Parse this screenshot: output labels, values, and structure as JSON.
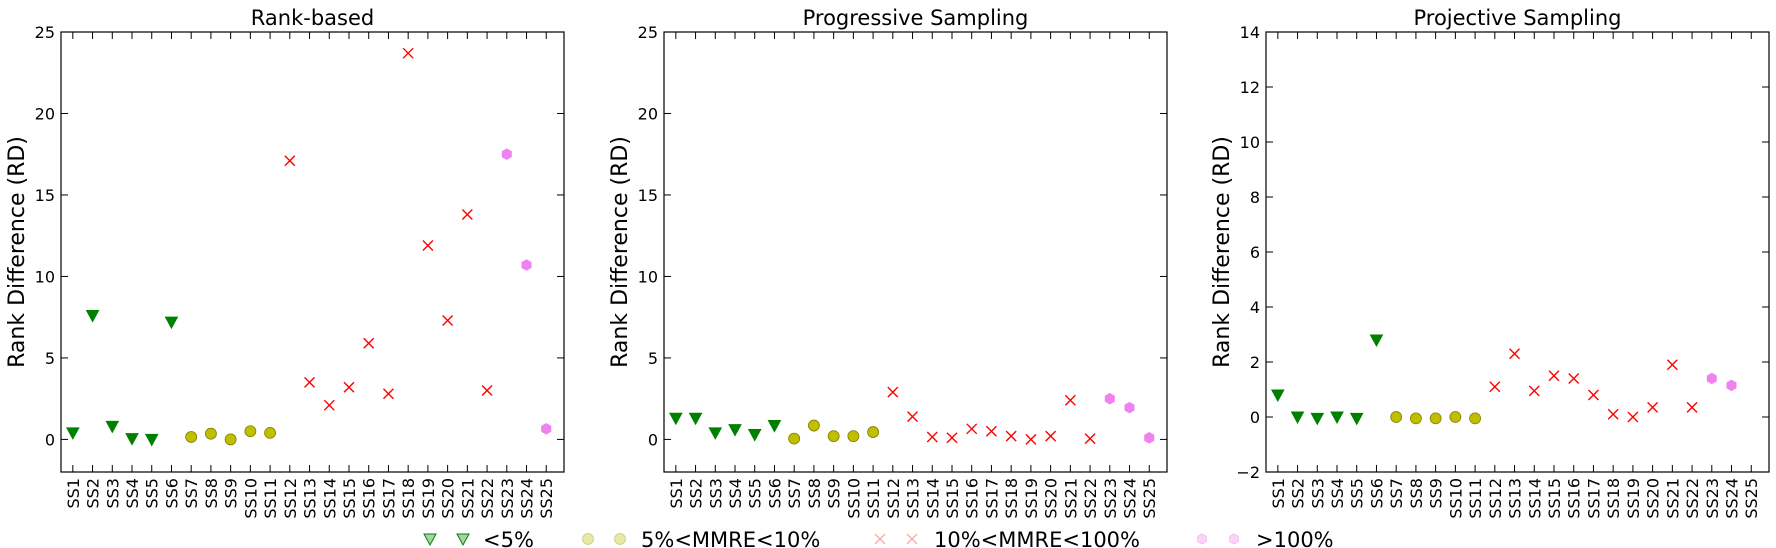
{
  "figure": {
    "legend": [
      {
        "label": "<5%",
        "marker": "triangle",
        "color": "#008000"
      },
      {
        "label": "5%<MMRE<10%",
        "marker": "circle",
        "color": "#bfbf00"
      },
      {
        "label": "10%<MMRE<100%",
        "marker": "x",
        "color": "#ff0000"
      },
      {
        "label": ">100%",
        "marker": "hexagon",
        "color": "#ee82ee"
      }
    ]
  },
  "chart_data": [
    {
      "type": "scatter",
      "title": "Rank-based",
      "ylabel": "Rank Difference (RD)",
      "categories": [
        "SS1",
        "SS2",
        "SS3",
        "SS4",
        "SS5",
        "SS6",
        "SS7",
        "SS8",
        "SS9",
        "SS10",
        "SS11",
        "SS12",
        "SS13",
        "SS14",
        "SS15",
        "SS16",
        "SS17",
        "SS18",
        "SS19",
        "SS20",
        "SS21",
        "SS22",
        "SS23",
        "SS24",
        "SS25"
      ],
      "ylim": [
        -2,
        25
      ],
      "yticks": [
        0,
        5,
        10,
        15,
        20,
        25
      ],
      "points": [
        {
          "x": "SS1",
          "y": 0.4,
          "group": "<5%"
        },
        {
          "x": "SS2",
          "y": 7.6,
          "group": "<5%"
        },
        {
          "x": "SS3",
          "y": 0.8,
          "group": "<5%"
        },
        {
          "x": "SS4",
          "y": 0.05,
          "group": "<5%"
        },
        {
          "x": "SS5",
          "y": 0.0,
          "group": "<5%"
        },
        {
          "x": "SS6",
          "y": 7.2,
          "group": "<5%"
        },
        {
          "x": "SS7",
          "y": 0.15,
          "group": "5%<MMRE<10%"
        },
        {
          "x": "SS8",
          "y": 0.35,
          "group": "5%<MMRE<10%"
        },
        {
          "x": "SS9",
          "y": 0.0,
          "group": "5%<MMRE<10%"
        },
        {
          "x": "SS10",
          "y": 0.5,
          "group": "5%<MMRE<10%"
        },
        {
          "x": "SS11",
          "y": 0.4,
          "group": "5%<MMRE<10%"
        },
        {
          "x": "SS12",
          "y": 17.1,
          "group": "10%<MMRE<100%"
        },
        {
          "x": "SS13",
          "y": 3.5,
          "group": "10%<MMRE<100%"
        },
        {
          "x": "SS14",
          "y": 2.1,
          "group": "10%<MMRE<100%"
        },
        {
          "x": "SS15",
          "y": 3.2,
          "group": "10%<MMRE<100%"
        },
        {
          "x": "SS16",
          "y": 5.9,
          "group": "10%<MMRE<100%"
        },
        {
          "x": "SS17",
          "y": 2.8,
          "group": "10%<MMRE<100%"
        },
        {
          "x": "SS18",
          "y": 23.7,
          "group": "10%<MMRE<100%"
        },
        {
          "x": "SS19",
          "y": 11.9,
          "group": "10%<MMRE<100%"
        },
        {
          "x": "SS20",
          "y": 7.3,
          "group": "10%<MMRE<100%"
        },
        {
          "x": "SS21",
          "y": 13.8,
          "group": "10%<MMRE<100%"
        },
        {
          "x": "SS22",
          "y": 3.0,
          "group": "10%<MMRE<100%"
        },
        {
          "x": "SS23",
          "y": 17.5,
          "group": ">100%"
        },
        {
          "x": "SS24",
          "y": 10.7,
          "group": ">100%"
        },
        {
          "x": "SS25",
          "y": 0.65,
          "group": ">100%"
        }
      ]
    },
    {
      "type": "scatter",
      "title": "Progressive Sampling",
      "ylabel": "Rank Difference (RD)",
      "categories": [
        "SS1",
        "SS2",
        "SS3",
        "SS4",
        "SS5",
        "SS6",
        "SS7",
        "SS8",
        "SS9",
        "SS10",
        "SS11",
        "SS12",
        "SS13",
        "SS14",
        "SS15",
        "SS16",
        "SS17",
        "SS18",
        "SS19",
        "SS20",
        "SS21",
        "SS22",
        "SS23",
        "SS24",
        "SS25"
      ],
      "ylim": [
        -2,
        25
      ],
      "yticks": [
        0,
        5,
        10,
        15,
        20,
        25
      ],
      "points": [
        {
          "x": "SS1",
          "y": 1.3,
          "group": "<5%"
        },
        {
          "x": "SS2",
          "y": 1.3,
          "group": "<5%"
        },
        {
          "x": "SS3",
          "y": 0.4,
          "group": "<5%"
        },
        {
          "x": "SS4",
          "y": 0.6,
          "group": "<5%"
        },
        {
          "x": "SS5",
          "y": 0.3,
          "group": "<5%"
        },
        {
          "x": "SS6",
          "y": 0.85,
          "group": "<5%"
        },
        {
          "x": "SS7",
          "y": 0.05,
          "group": "5%<MMRE<10%"
        },
        {
          "x": "SS8",
          "y": 0.85,
          "group": "5%<MMRE<10%"
        },
        {
          "x": "SS9",
          "y": 0.2,
          "group": "5%<MMRE<10%"
        },
        {
          "x": "SS10",
          "y": 0.2,
          "group": "5%<MMRE<10%"
        },
        {
          "x": "SS11",
          "y": 0.45,
          "group": "5%<MMRE<10%"
        },
        {
          "x": "SS12",
          "y": 2.9,
          "group": "10%<MMRE<100%"
        },
        {
          "x": "SS13",
          "y": 1.4,
          "group": "10%<MMRE<100%"
        },
        {
          "x": "SS14",
          "y": 0.15,
          "group": "10%<MMRE<100%"
        },
        {
          "x": "SS15",
          "y": 0.1,
          "group": "10%<MMRE<100%"
        },
        {
          "x": "SS16",
          "y": 0.65,
          "group": "10%<MMRE<100%"
        },
        {
          "x": "SS17",
          "y": 0.5,
          "group": "10%<MMRE<100%"
        },
        {
          "x": "SS18",
          "y": 0.2,
          "group": "10%<MMRE<100%"
        },
        {
          "x": "SS19",
          "y": 0.0,
          "group": "10%<MMRE<100%"
        },
        {
          "x": "SS20",
          "y": 0.2,
          "group": "10%<MMRE<100%"
        },
        {
          "x": "SS21",
          "y": 2.4,
          "group": "10%<MMRE<100%"
        },
        {
          "x": "SS22",
          "y": 0.05,
          "group": "10%<MMRE<100%"
        },
        {
          "x": "SS23",
          "y": 2.5,
          "group": ">100%"
        },
        {
          "x": "SS24",
          "y": 1.95,
          "group": ">100%"
        },
        {
          "x": "SS25",
          "y": 0.1,
          "group": ">100%"
        }
      ]
    },
    {
      "type": "scatter",
      "title": "Projective Sampling",
      "ylabel": "Rank Difference (RD)",
      "categories": [
        "SS1",
        "SS2",
        "SS3",
        "SS4",
        "SS5",
        "SS6",
        "SS7",
        "SS8",
        "SS9",
        "SS10",
        "SS11",
        "SS12",
        "SS13",
        "SS14",
        "SS15",
        "SS16",
        "SS17",
        "SS18",
        "SS19",
        "SS20",
        "SS21",
        "SS22",
        "SS23",
        "SS24",
        "SS25"
      ],
      "ylim": [
        -2,
        14
      ],
      "yticks": [
        -2,
        0,
        2,
        4,
        6,
        8,
        10,
        12,
        14
      ],
      "points": [
        {
          "x": "SS1",
          "y": 0.8,
          "group": "<5%"
        },
        {
          "x": "SS2",
          "y": 0.0,
          "group": "<5%"
        },
        {
          "x": "SS3",
          "y": -0.05,
          "group": "<5%"
        },
        {
          "x": "SS4",
          "y": 0.0,
          "group": "<5%"
        },
        {
          "x": "SS5",
          "y": -0.05,
          "group": "<5%"
        },
        {
          "x": "SS6",
          "y": 2.8,
          "group": "<5%"
        },
        {
          "x": "SS7",
          "y": 0.0,
          "group": "5%<MMRE<10%"
        },
        {
          "x": "SS8",
          "y": -0.05,
          "group": "5%<MMRE<10%"
        },
        {
          "x": "SS9",
          "y": -0.05,
          "group": "5%<MMRE<10%"
        },
        {
          "x": "SS10",
          "y": 0.0,
          "group": "5%<MMRE<10%"
        },
        {
          "x": "SS11",
          "y": -0.05,
          "group": "5%<MMRE<10%"
        },
        {
          "x": "SS12",
          "y": 1.1,
          "group": "10%<MMRE<100%"
        },
        {
          "x": "SS13",
          "y": 2.3,
          "group": "10%<MMRE<100%"
        },
        {
          "x": "SS14",
          "y": 0.95,
          "group": "10%<MMRE<100%"
        },
        {
          "x": "SS15",
          "y": 1.5,
          "group": "10%<MMRE<100%"
        },
        {
          "x": "SS16",
          "y": 1.4,
          "group": "10%<MMRE<100%"
        },
        {
          "x": "SS17",
          "y": 0.8,
          "group": "10%<MMRE<100%"
        },
        {
          "x": "SS18",
          "y": 0.1,
          "group": "10%<MMRE<100%"
        },
        {
          "x": "SS19",
          "y": 0.0,
          "group": "10%<MMRE<100%"
        },
        {
          "x": "SS20",
          "y": 0.35,
          "group": "10%<MMRE<100%"
        },
        {
          "x": "SS21",
          "y": 1.9,
          "group": "10%<MMRE<100%"
        },
        {
          "x": "SS22",
          "y": 0.35,
          "group": "10%<MMRE<100%"
        },
        {
          "x": "SS23",
          "y": 1.4,
          "group": ">100%"
        },
        {
          "x": "SS24",
          "y": 1.15,
          "group": ">100%"
        }
      ]
    }
  ]
}
